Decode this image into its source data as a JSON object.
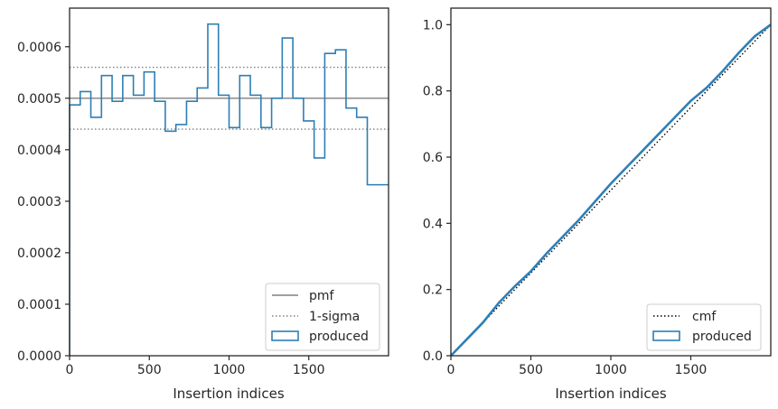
{
  "chart_data": [
    {
      "type": "step",
      "title": "",
      "xlabel": "Insertion indices",
      "ylabel": "",
      "xlim": [
        0,
        2000
      ],
      "ylim": [
        0,
        0.000675
      ],
      "xticks": [
        0,
        500,
        1000,
        1500
      ],
      "xtick_labels": [
        "0",
        "500",
        "1000",
        "1500"
      ],
      "yticks": [
        0,
        0.0001,
        0.0002,
        0.0003,
        0.0004,
        0.0005,
        0.0006
      ],
      "ytick_labels": [
        "0.0000",
        "0.0001",
        "0.0002",
        "0.0003",
        "0.0004",
        "0.0005",
        "0.0006"
      ],
      "grid": false,
      "legend_position": "lower right",
      "pmf": 0.0005,
      "sigma_lower": 0.00044,
      "sigma_upper": 0.00056,
      "bin_width": 66.67,
      "series": [
        {
          "name": "pmf",
          "style": "solid",
          "color": "#808080"
        },
        {
          "name": "1-sigma",
          "style": "dotted",
          "color": "#808080"
        },
        {
          "name": "produced",
          "style": "step",
          "color": "#2e7fb5",
          "values": [
            0.000487,
            0.000513,
            0.000463,
            0.000544,
            0.000494,
            0.000544,
            0.000506,
            0.000551,
            0.000494,
            0.000436,
            0.000449,
            0.000494,
            0.00052,
            0.000644,
            0.000506,
            0.000443,
            0.000544,
            0.000506,
            0.000443,
            0.0005,
            0.000617,
            0.0005,
            0.000456,
            0.000384,
            0.000587,
            0.000594,
            0.000481,
            0.000463,
            0.000332,
            0.000332
          ]
        }
      ]
    },
    {
      "type": "line",
      "title": "",
      "xlabel": "Insertion indices",
      "ylabel": "",
      "xlim": [
        0,
        2000
      ],
      "ylim": [
        0,
        1.05
      ],
      "xticks": [
        0,
        500,
        1000,
        1500
      ],
      "xtick_labels": [
        "0",
        "500",
        "1000",
        "1500"
      ],
      "yticks": [
        0,
        0.2,
        0.4,
        0.6,
        0.8,
        1.0
      ],
      "ytick_labels": [
        "0.0",
        "0.2",
        "0.4",
        "0.6",
        "0.8",
        "1.0"
      ],
      "grid": false,
      "legend_position": "lower right",
      "series": [
        {
          "name": "cmf",
          "style": "dotted",
          "color": "#000000",
          "x": [
            0,
            2000
          ],
          "y": [
            0,
            1.0
          ]
        },
        {
          "name": "produced",
          "style": "step",
          "color": "#2e7fb5",
          "x": [
            0,
            100,
            200,
            300,
            400,
            500,
            600,
            700,
            800,
            900,
            1000,
            1100,
            1200,
            1300,
            1400,
            1500,
            1550,
            1600,
            1700,
            1800,
            1900,
            2000
          ],
          "y": [
            0,
            0.05,
            0.1,
            0.16,
            0.21,
            0.255,
            0.31,
            0.36,
            0.41,
            0.465,
            0.52,
            0.57,
            0.62,
            0.67,
            0.72,
            0.77,
            0.79,
            0.81,
            0.86,
            0.915,
            0.965,
            1.0
          ]
        }
      ]
    }
  ]
}
